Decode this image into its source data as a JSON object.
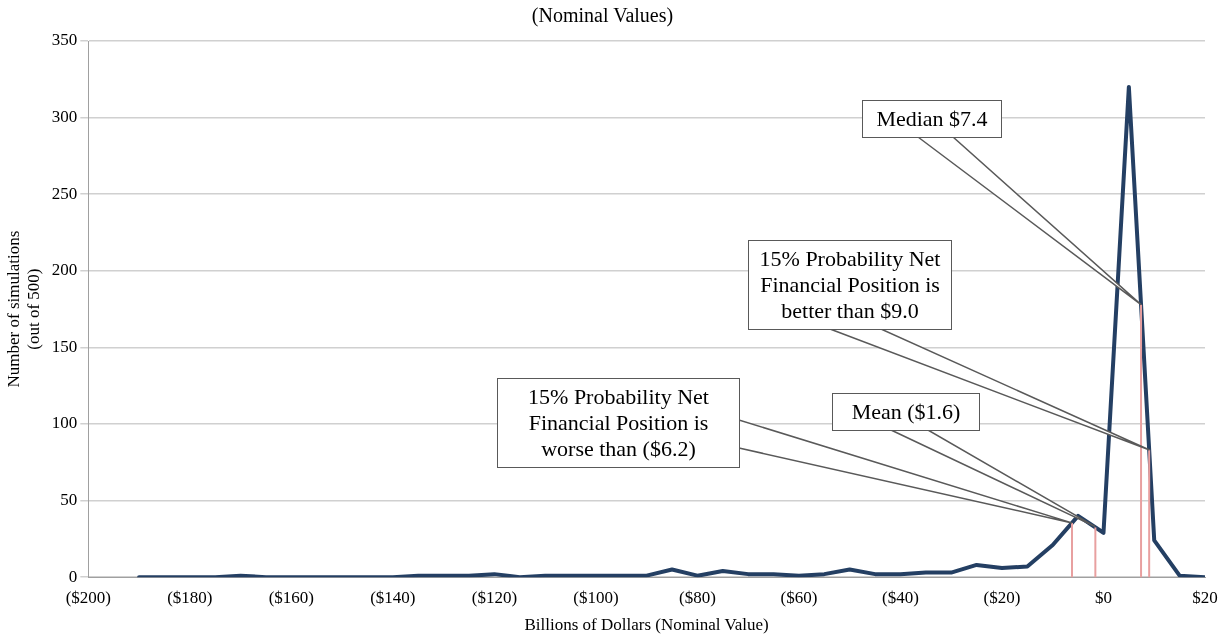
{
  "chart_data": {
    "type": "line",
    "title": "(Nominal Values)",
    "xlabel": "Billions of Dollars (Nominal Value)",
    "ylabel": "Number of simulations\n(out of 500)",
    "x": [
      -190,
      -185,
      -180,
      -175,
      -170,
      -165,
      -160,
      -155,
      -150,
      -145,
      -140,
      -135,
      -130,
      -125,
      -120,
      -115,
      -110,
      -105,
      -100,
      -95,
      -90,
      -85,
      -80,
      -75,
      -70,
      -65,
      -60,
      -55,
      -50,
      -45,
      -40,
      -35,
      -30,
      -25,
      -20,
      -15,
      -10,
      -5,
      0,
      5,
      10,
      15,
      20
    ],
    "series": [
      {
        "color": "#243f63",
        "values": [
          0,
          0,
          0,
          0,
          1,
          0,
          0,
          0,
          0,
          0,
          0,
          1,
          1,
          1,
          2,
          0,
          1,
          1,
          1,
          1,
          1,
          5,
          1,
          4,
          2,
          2,
          1,
          2,
          5,
          2,
          2,
          3,
          3,
          8,
          6,
          7,
          21,
          40,
          29,
          320,
          24,
          1,
          0
        ]
      }
    ],
    "xlim": [
      -200,
      20
    ],
    "xticks": [
      {
        "value": -200,
        "label": "($200)"
      },
      {
        "value": -180,
        "label": "($180)"
      },
      {
        "value": -160,
        "label": "($160)"
      },
      {
        "value": -140,
        "label": "($140)"
      },
      {
        "value": -120,
        "label": "($120)"
      },
      {
        "value": -100,
        "label": "($100)"
      },
      {
        "value": -80,
        "label": "($80)"
      },
      {
        "value": -60,
        "label": "($60)"
      },
      {
        "value": -40,
        "label": "($40)"
      },
      {
        "value": -20,
        "label": "($20)"
      },
      {
        "value": 0,
        "label": "$0"
      },
      {
        "value": 20,
        "label": "$20"
      }
    ],
    "ylim": [
      0,
      350
    ],
    "yticks": [
      0,
      50,
      100,
      150,
      200,
      250,
      300,
      350
    ],
    "grid": "y",
    "legend": false,
    "marker": "none",
    "line_style": "solid",
    "ref_lines": [
      {
        "axis": "x",
        "value": -6.2,
        "color": "#e8a0a0"
      },
      {
        "axis": "x",
        "value": -1.6,
        "color": "#e8a0a0"
      },
      {
        "axis": "x",
        "value": 7.4,
        "color": "#e8a0a0"
      },
      {
        "axis": "x",
        "value": 9.0,
        "color": "#e8a0a0"
      }
    ],
    "annotations": [
      "15% Probability Net Financial Position is worse than ($6.2)",
      {
        "text": "Mean ($1.6)",
        "x": -1.6,
        "y": 33
      },
      "Median $7.4",
      {
        "text": "15% Probability Net Financial Position is better than $9.0",
        "x": 9.0,
        "y": 83
      }
    ]
  }
}
